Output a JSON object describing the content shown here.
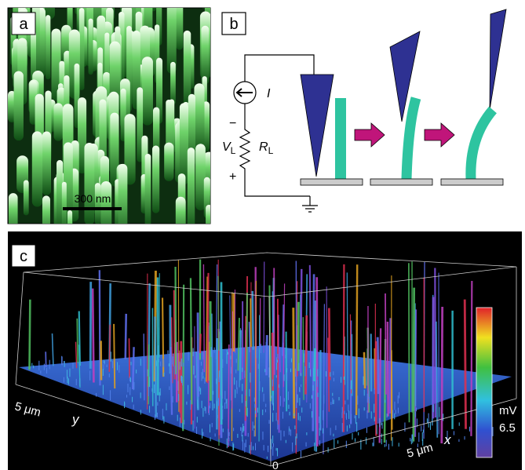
{
  "panel_a": {
    "label": "a",
    "scale_bar": "300 nm"
  },
  "panel_b": {
    "label": "b",
    "current": "I",
    "minus": "−",
    "plus": "+",
    "voltage": {
      "symbol": "V",
      "subscript": "L"
    },
    "resistor": {
      "symbol": "R",
      "subscript": "L"
    }
  },
  "panel_c": {
    "label": "c",
    "y_extent": "5 μm",
    "y_axis": "y",
    "x_extent": "5 μm",
    "x_axis": "x",
    "origin": "0",
    "colorbar_unit": "mV",
    "colorbar_value": "6.5"
  }
}
